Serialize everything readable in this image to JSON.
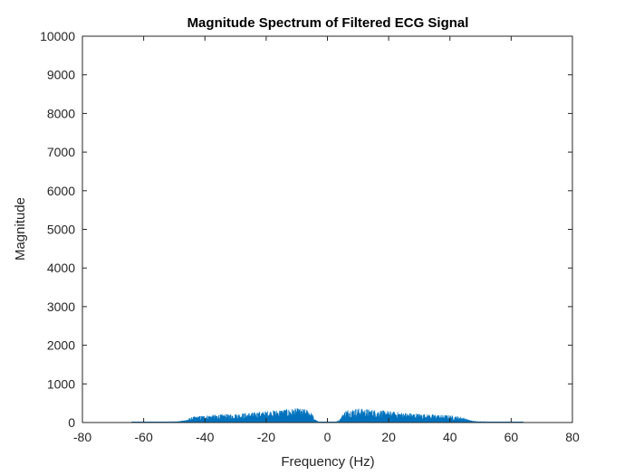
{
  "chart_data": {
    "type": "area",
    "title": "Magnitude Spectrum of Filtered ECG Signal",
    "xlabel": "Frequency (Hz)",
    "ylabel": "Magnitude",
    "xlim": [
      -80,
      80
    ],
    "ylim": [
      0,
      10000
    ],
    "xticks": [
      -80,
      -60,
      -40,
      -20,
      0,
      20,
      40,
      60,
      80
    ],
    "yticks": [
      0,
      1000,
      2000,
      3000,
      4000,
      5000,
      6000,
      7000,
      8000,
      9000,
      10000
    ],
    "grid": false,
    "series": [
      {
        "color": "#0072BD",
        "envelope": {
          "x": [
            -64,
            -58,
            -52,
            -48,
            -46,
            -44,
            -40,
            -35,
            -30,
            -25,
            -20,
            -15,
            -12,
            -10,
            -8,
            -6,
            -5,
            -4,
            -3,
            -2,
            0,
            2,
            3,
            4,
            5,
            6,
            8,
            10,
            12,
            15,
            20,
            25,
            30,
            35,
            40,
            44,
            46,
            48,
            52,
            58,
            64
          ],
          "y": [
            5,
            15,
            25,
            40,
            80,
            150,
            190,
            210,
            230,
            260,
            300,
            340,
            360,
            370,
            360,
            330,
            230,
            80,
            30,
            15,
            10,
            15,
            30,
            80,
            230,
            330,
            360,
            370,
            360,
            340,
            300,
            260,
            230,
            210,
            190,
            150,
            80,
            40,
            25,
            15,
            5
          ]
        }
      }
    ]
  }
}
